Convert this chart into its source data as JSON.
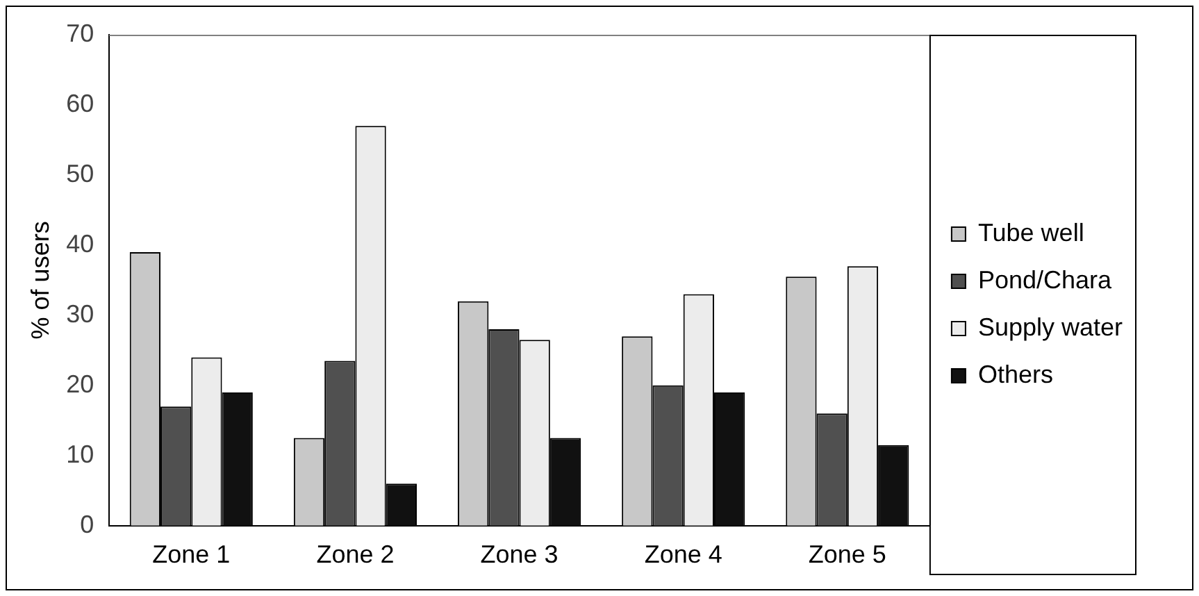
{
  "chart_data": {
    "type": "bar",
    "ylabel": "% of users",
    "categories": [
      "Zone 1",
      "Zone 2",
      "Zone 3",
      "Zone 4",
      "Zone 5"
    ],
    "series": [
      {
        "name": "Tube well",
        "color": "#c8c8c8",
        "values": [
          39,
          12.5,
          32,
          27,
          35.5
        ]
      },
      {
        "name": "Pond/Chara",
        "color": "#505050",
        "values": [
          17,
          23.5,
          28,
          20,
          16
        ]
      },
      {
        "name": "Supply water",
        "color": "#ececec",
        "values": [
          24,
          57,
          26.5,
          33,
          37
        ]
      },
      {
        "name": "Others",
        "color": "#111111",
        "values": [
          19,
          6,
          12.5,
          19,
          11.5
        ]
      }
    ],
    "ylim": [
      0,
      70
    ],
    "yticks": [
      0,
      10,
      20,
      30,
      40,
      50,
      60,
      70
    ],
    "grid": false,
    "legend": "right"
  }
}
